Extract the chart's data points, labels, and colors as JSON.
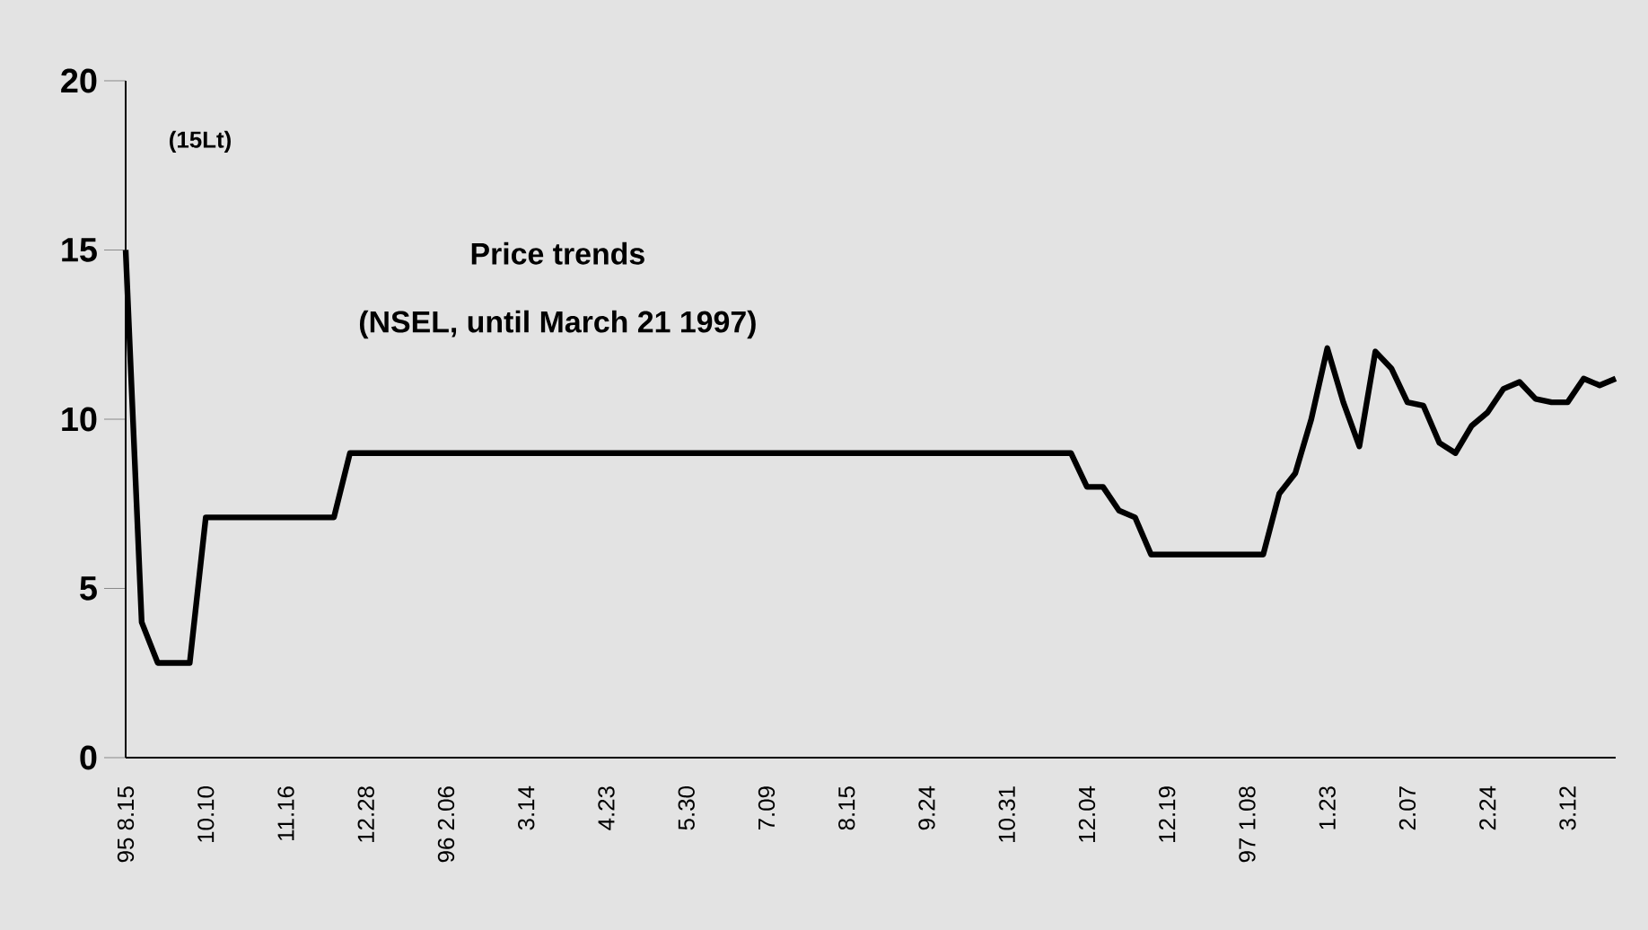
{
  "chart_data": {
    "type": "line",
    "title": "Price trends",
    "subtitle": "(NSEL, until March 21 1997)",
    "ylabel": "(15Lt)",
    "categories": [
      "95 8.15",
      null,
      null,
      null,
      null,
      "10.10",
      null,
      null,
      null,
      null,
      "11.16",
      null,
      null,
      null,
      null,
      "12.28",
      null,
      null,
      null,
      null,
      "96 2.06",
      null,
      null,
      null,
      null,
      "3.14",
      null,
      null,
      null,
      null,
      "4.23",
      null,
      null,
      null,
      null,
      "5.30",
      null,
      null,
      null,
      null,
      "7.09",
      null,
      null,
      null,
      null,
      "8.15",
      null,
      null,
      null,
      null,
      "9.24",
      null,
      null,
      null,
      null,
      "10.31",
      null,
      null,
      null,
      null,
      "12.04",
      null,
      null,
      null,
      null,
      "12.19",
      null,
      null,
      null,
      null,
      "97 1.08",
      null,
      null,
      null,
      null,
      "1.23",
      null,
      null,
      null,
      null,
      "2.07",
      null,
      null,
      null,
      null,
      "2.24",
      null,
      null,
      null,
      null,
      "3.12",
      null,
      null,
      null
    ],
    "series": [
      {
        "color": "#000000",
        "values": [
          15,
          4,
          2.8,
          2.8,
          2.8,
          7.1,
          7.1,
          7.1,
          7.1,
          7.1,
          7.1,
          7.1,
          7.1,
          7.1,
          9,
          9,
          9,
          9,
          9,
          9,
          9,
          9,
          9,
          9,
          9,
          9,
          9,
          9,
          9,
          9,
          9,
          9,
          9,
          9,
          9,
          9,
          9,
          9,
          9,
          9,
          9,
          9,
          9,
          9,
          9,
          9,
          9,
          9,
          9,
          9,
          9,
          9,
          9,
          9,
          9,
          9,
          9,
          9,
          9,
          9,
          8,
          8,
          7.3,
          7.1,
          6,
          6,
          6,
          6,
          6,
          6,
          6,
          6,
          7.8,
          8.4,
          10,
          12.1,
          10.5,
          9.2,
          12,
          11.5,
          10.5,
          10.4,
          9.3,
          9,
          9.8,
          10.2,
          10.9,
          11.1,
          10.6,
          10.5,
          10.5,
          11.2,
          11,
          11.2
        ]
      }
    ],
    "ylim": [
      0,
      20
    ],
    "yticks": [
      0,
      5,
      10,
      15,
      20
    ],
    "grid": false,
    "marker": "none",
    "line_style": "solid"
  }
}
